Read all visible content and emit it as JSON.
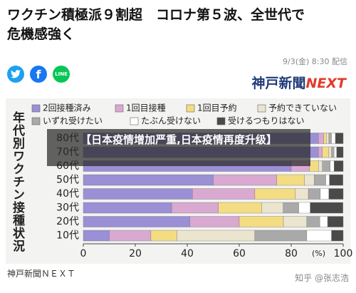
{
  "headline": [
    "ワクチン積極派９割超　コロナ第５波、全世代で",
    "危機感強く"
  ],
  "date": "9/3(金) 8:30 配信",
  "share_line": "LINE",
  "logo": [
    "神戸新聞",
    "NEXT"
  ],
  "footer_source": "神戸新聞ＮＥＸＴ",
  "watermark": "知乎 @张志浩",
  "overlay": "【日本疫情增加严重,日本疫情再度升级】",
  "chart_data": {
    "type": "stacked-bar-horizontal",
    "title": "年代別ワクチン接種状況",
    "categories": [
      "80代",
      "70代",
      "60代",
      "50代",
      "40代",
      "30代",
      "20代",
      "10代"
    ],
    "series": [
      {
        "name": "2回接種済み",
        "color": "#9b8fd6",
        "values": [
          90.5,
          90.5,
          80,
          50,
          42,
          34,
          41,
          10
        ]
      },
      {
        "name": "1回目接種",
        "color": "#d9a9d2",
        "values": [
          2,
          1.5,
          7,
          24.4,
          24,
          18,
          19,
          16
        ]
      },
      {
        "name": "1回目予約",
        "color": "#f3dc82",
        "values": [
          1,
          2.5,
          3.5,
          10.7,
          15.6,
          16.7,
          17,
          10
        ]
      },
      {
        "name": "予約できていない",
        "color": "#ebe5cf",
        "values": [
          1,
          1,
          1.5,
          3.8,
          5,
          8.2,
          9,
          30
        ]
      },
      {
        "name": "いずれ受けたい",
        "color": "#a9a9a9",
        "values": [
          1,
          1,
          3,
          4.4,
          4.6,
          6,
          5,
          20
        ]
      },
      {
        "name": "たぶん受けない",
        "color": "#ffffff",
        "values": [
          1.5,
          1,
          1.5,
          1.4,
          3.3,
          4.4,
          3,
          9.5
        ]
      },
      {
        "name": "受けるつもりはない",
        "color": "#4a4a4a",
        "values": [
          3,
          2.5,
          3.5,
          5.2,
          5.5,
          12.6,
          6,
          4.5
        ]
      }
    ],
    "xlim": [
      0,
      100
    ],
    "xticks": [
      0,
      20,
      40,
      60,
      80,
      100
    ],
    "x_unit": "(%)"
  }
}
